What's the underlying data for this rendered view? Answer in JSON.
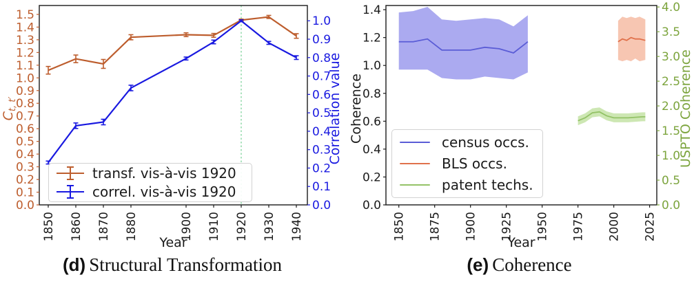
{
  "colors": {
    "foreground": "#1a1a1a",
    "spine": "#1a1a1a",
    "transf_orange": "#bd5d2d",
    "correl_blue": "#1919e0",
    "vline_green": "#8fd9a8",
    "census_line": "#5a5cd6",
    "census_band": "#abaaf0",
    "bls_line": "#e0714b",
    "bls_band": "#f7c6b2",
    "patent_line": "#93c266",
    "patent_band": "#cde7b3",
    "uspto_axis_green": "#7ca43d"
  },
  "chart_data": [
    {
      "type": "line",
      "id": "structural-transformation",
      "caption_letter": "(d)",
      "caption_title": "Structural Transformation",
      "xlabel": "Year",
      "xlim": [
        1846.75,
        1944
      ],
      "x_ticks": [
        "1850",
        "1860",
        "1870",
        "1880",
        "1900",
        "1910",
        "1920",
        "1930",
        "1940"
      ],
      "left_axis": {
        "label_main": "C",
        "label_sub": "t, t′",
        "color": "#bd5d2d",
        "lim": [
          0,
          1.57
        ],
        "ticks": [
          "0.0",
          "0.1",
          "0.2",
          "0.3",
          "0.4",
          "0.5",
          "0.6",
          "0.7",
          "0.8",
          "0.9",
          "1.0",
          "1.1",
          "1.2",
          "1.3",
          "1.4",
          "1.5"
        ]
      },
      "right_axis": {
        "label": "Correlation value",
        "color": "#1919e0",
        "lim": [
          0,
          1.083
        ],
        "ticks": [
          "0.0",
          "0.1",
          "0.2",
          "0.3",
          "0.4",
          "0.5",
          "0.6",
          "0.7",
          "0.8",
          "0.9",
          "1.0"
        ]
      },
      "vline": {
        "x": 1920,
        "color": "#8fd9a8",
        "style": "dashed"
      },
      "legend_position": "lower left",
      "series": [
        {
          "id": "transf",
          "name": "transf. vis-à-vis 1920",
          "type": "errorbar-line",
          "axis": "left",
          "color": "#bd5d2d",
          "x": [
            1850,
            1860,
            1870,
            1880,
            1900,
            1910,
            1920,
            1930,
            1940
          ],
          "y": [
            1.06,
            1.15,
            1.11,
            1.32,
            1.34,
            1.335,
            1.455,
            1.48,
            1.33
          ],
          "yerr": [
            0.03,
            0.03,
            0.035,
            0.02,
            0.015,
            0.015,
            0.008,
            0.012,
            0.018
          ]
        },
        {
          "id": "correl",
          "name": "correl. vis-à-vis 1920",
          "type": "errorbar-line",
          "axis": "right",
          "color": "#1919e0",
          "x": [
            1850,
            1860,
            1870,
            1880,
            1900,
            1910,
            1920,
            1930,
            1940
          ],
          "y": [
            0.23,
            0.43,
            0.45,
            0.635,
            0.795,
            0.885,
            1.0,
            0.88,
            0.8
          ],
          "yerr": [
            0.008,
            0.015,
            0.015,
            0.015,
            0.008,
            0.01,
            0.005,
            0.008,
            0.01
          ]
        }
      ]
    },
    {
      "type": "area",
      "id": "coherence",
      "caption_letter": "(e)",
      "caption_title": "Coherence",
      "xlabel": "Year",
      "xlim": [
        1841,
        2030
      ],
      "x_ticks": [
        "1850",
        "1875",
        "1900",
        "1925",
        "1950",
        "1975",
        "2000",
        "2025"
      ],
      "left_axis": {
        "label": "Coherence",
        "color": "#1a1a1a",
        "lim": [
          0,
          1.43
        ],
        "ticks": [
          "0.0",
          "0.2",
          "0.4",
          "0.6",
          "0.8",
          "1.0",
          "1.2",
          "1.4"
        ]
      },
      "right_axis": {
        "label": "USPTO Coherence",
        "color": "#7ca43d",
        "lim": [
          0,
          4.03
        ],
        "ticks": [
          "0.0",
          "0.5",
          "1.0",
          "1.5",
          "2.0",
          "2.5",
          "3.0",
          "3.5",
          "4.0"
        ]
      },
      "legend_position": "lower left",
      "series": [
        {
          "id": "census-occs",
          "name": "census occs.",
          "type": "band",
          "axis": "left",
          "color": "#5a5cd6",
          "band_color": "#abaaf0",
          "x": [
            1850,
            1860,
            1870,
            1880,
            1890,
            1900,
            1910,
            1920,
            1930,
            1940
          ],
          "mean": [
            1.17,
            1.17,
            1.19,
            1.11,
            1.11,
            1.11,
            1.13,
            1.12,
            1.09,
            1.17
          ],
          "upper": [
            1.38,
            1.39,
            1.42,
            1.33,
            1.32,
            1.33,
            1.34,
            1.33,
            1.28,
            1.36
          ],
          "lower": [
            0.97,
            0.97,
            0.97,
            0.91,
            0.9,
            0.9,
            0.92,
            0.91,
            0.9,
            0.95
          ]
        },
        {
          "id": "bls-occs",
          "name": "BLS occs.",
          "type": "band",
          "axis": "left",
          "color": "#e0714b",
          "band_color": "#f7c6b2",
          "x": [
            2003,
            2006,
            2009,
            2012,
            2015,
            2018,
            2022
          ],
          "mean": [
            1.17,
            1.19,
            1.18,
            1.2,
            1.19,
            1.19,
            1.18
          ],
          "upper": [
            1.32,
            1.35,
            1.34,
            1.35,
            1.34,
            1.35,
            1.33
          ],
          "lower": [
            1.04,
            1.03,
            1.04,
            1.03,
            1.05,
            1.03,
            1.04
          ]
        },
        {
          "id": "patent-techs",
          "name": "patent techs.",
          "type": "band",
          "axis": "right",
          "color": "#93c266",
          "band_color": "#cde7b3",
          "x": [
            1975,
            1980,
            1985,
            1990,
            1995,
            2000,
            2005,
            2010,
            2015,
            2020,
            2022
          ],
          "mean": [
            1.7,
            1.76,
            1.86,
            1.88,
            1.8,
            1.76,
            1.76,
            1.76,
            1.77,
            1.78,
            1.78
          ],
          "upper": [
            1.79,
            1.85,
            1.95,
            1.97,
            1.89,
            1.85,
            1.85,
            1.85,
            1.86,
            1.87,
            1.87
          ],
          "lower": [
            1.61,
            1.67,
            1.77,
            1.79,
            1.71,
            1.67,
            1.67,
            1.67,
            1.68,
            1.69,
            1.69
          ]
        }
      ]
    }
  ]
}
